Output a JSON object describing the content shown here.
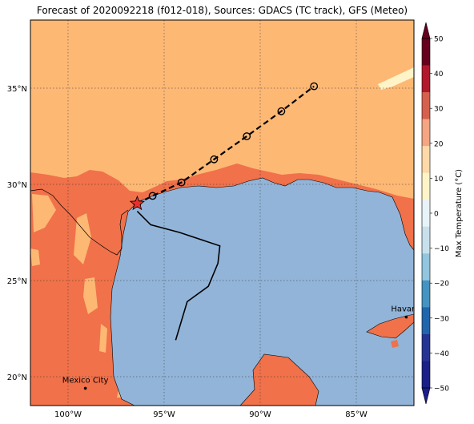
{
  "title": "Forecast of 2020092218 (f012-018), Sources: GDACS (TC track), GFS (Meteo)",
  "axes": {
    "lat_ticks": [
      "35°N",
      "30°N",
      "25°N",
      "20°N"
    ],
    "lon_ticks": [
      "100°W",
      "95°W",
      "90°W",
      "85°W"
    ]
  },
  "cities": [
    {
      "name": "Havana",
      "lat": 23.1,
      "lon": -82.4
    },
    {
      "name": "Mexico City",
      "lat": 19.4,
      "lon": -99.1
    }
  ],
  "colorbar": {
    "label": "Max Temperature (°C)",
    "ticks": [
      "50",
      "40",
      "30",
      "20",
      "10",
      "0",
      "−10",
      "−20",
      "−30",
      "−40",
      "−50"
    ],
    "bands": [
      "#67001f",
      "#b2182b",
      "#d6604d",
      "#f4a582",
      "#fdd9a8",
      "#fff4c7",
      "#e8f3f8",
      "#c7e0ec",
      "#92c5de",
      "#4393c3",
      "#2166ac",
      "#253494",
      "#1b1f8a"
    ]
  },
  "colors": {
    "sea": "#92b4d8",
    "land_warm": "#fdb874",
    "land_hot": "#f0714a",
    "land_cool": "#fff4c8",
    "track": "#000000",
    "marker": "#e8302a"
  },
  "track_forecast": [
    {
      "lat": 29.0,
      "lon": -96.4
    },
    {
      "lat": 29.4,
      "lon": -95.6
    },
    {
      "lat": 30.1,
      "lon": -94.1
    },
    {
      "lat": 31.3,
      "lon": -92.4
    },
    {
      "lat": 32.5,
      "lon": -90.7
    },
    {
      "lat": 33.8,
      "lon": -88.9
    },
    {
      "lat": 35.1,
      "lon": -87.2
    }
  ],
  "track_past": [
    {
      "lat": 21.9,
      "lon": -94.4
    },
    {
      "lat": 23.9,
      "lon": -93.8
    },
    {
      "lat": 24.7,
      "lon": -92.7
    },
    {
      "lat": 25.9,
      "lon": -92.2
    },
    {
      "lat": 26.8,
      "lon": -92.1
    },
    {
      "lat": 27.5,
      "lon": -94.2
    },
    {
      "lat": 27.9,
      "lon": -95.7
    },
    {
      "lat": 28.6,
      "lon": -96.4
    }
  ],
  "storm_position": {
    "lat": 29.0,
    "lon": -96.4
  }
}
